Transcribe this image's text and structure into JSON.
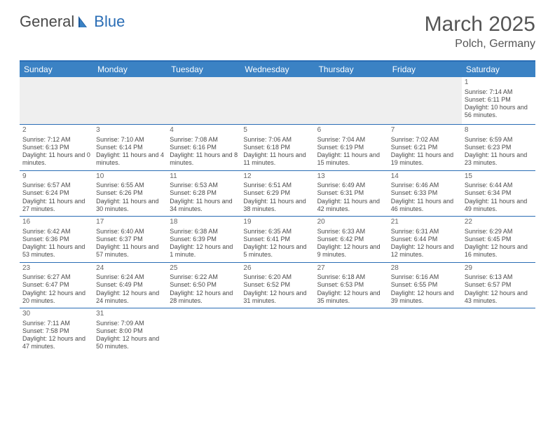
{
  "logo": {
    "text1": "General",
    "text2": "Blue"
  },
  "title": "March 2025",
  "location": "Polch, Germany",
  "header_bg": "#3b82c4",
  "border_color": "#2a6db5",
  "dayNames": [
    "Sunday",
    "Monday",
    "Tuesday",
    "Wednesday",
    "Thursday",
    "Friday",
    "Saturday"
  ],
  "weeks": [
    [
      {
        "blank": true
      },
      {
        "blank": true
      },
      {
        "blank": true
      },
      {
        "blank": true
      },
      {
        "blank": true
      },
      {
        "blank": true
      },
      {
        "d": "1",
        "sr": "Sunrise: 7:14 AM",
        "ss": "Sunset: 6:11 PM",
        "dl": "Daylight: 10 hours and 56 minutes."
      }
    ],
    [
      {
        "d": "2",
        "sr": "Sunrise: 7:12 AM",
        "ss": "Sunset: 6:13 PM",
        "dl": "Daylight: 11 hours and 0 minutes."
      },
      {
        "d": "3",
        "sr": "Sunrise: 7:10 AM",
        "ss": "Sunset: 6:14 PM",
        "dl": "Daylight: 11 hours and 4 minutes."
      },
      {
        "d": "4",
        "sr": "Sunrise: 7:08 AM",
        "ss": "Sunset: 6:16 PM",
        "dl": "Daylight: 11 hours and 8 minutes."
      },
      {
        "d": "5",
        "sr": "Sunrise: 7:06 AM",
        "ss": "Sunset: 6:18 PM",
        "dl": "Daylight: 11 hours and 11 minutes."
      },
      {
        "d": "6",
        "sr": "Sunrise: 7:04 AM",
        "ss": "Sunset: 6:19 PM",
        "dl": "Daylight: 11 hours and 15 minutes."
      },
      {
        "d": "7",
        "sr": "Sunrise: 7:02 AM",
        "ss": "Sunset: 6:21 PM",
        "dl": "Daylight: 11 hours and 19 minutes."
      },
      {
        "d": "8",
        "sr": "Sunrise: 6:59 AM",
        "ss": "Sunset: 6:23 PM",
        "dl": "Daylight: 11 hours and 23 minutes."
      }
    ],
    [
      {
        "d": "9",
        "sr": "Sunrise: 6:57 AM",
        "ss": "Sunset: 6:24 PM",
        "dl": "Daylight: 11 hours and 27 minutes."
      },
      {
        "d": "10",
        "sr": "Sunrise: 6:55 AM",
        "ss": "Sunset: 6:26 PM",
        "dl": "Daylight: 11 hours and 30 minutes."
      },
      {
        "d": "11",
        "sr": "Sunrise: 6:53 AM",
        "ss": "Sunset: 6:28 PM",
        "dl": "Daylight: 11 hours and 34 minutes."
      },
      {
        "d": "12",
        "sr": "Sunrise: 6:51 AM",
        "ss": "Sunset: 6:29 PM",
        "dl": "Daylight: 11 hours and 38 minutes."
      },
      {
        "d": "13",
        "sr": "Sunrise: 6:49 AM",
        "ss": "Sunset: 6:31 PM",
        "dl": "Daylight: 11 hours and 42 minutes."
      },
      {
        "d": "14",
        "sr": "Sunrise: 6:46 AM",
        "ss": "Sunset: 6:33 PM",
        "dl": "Daylight: 11 hours and 46 minutes."
      },
      {
        "d": "15",
        "sr": "Sunrise: 6:44 AM",
        "ss": "Sunset: 6:34 PM",
        "dl": "Daylight: 11 hours and 49 minutes."
      }
    ],
    [
      {
        "d": "16",
        "sr": "Sunrise: 6:42 AM",
        "ss": "Sunset: 6:36 PM",
        "dl": "Daylight: 11 hours and 53 minutes."
      },
      {
        "d": "17",
        "sr": "Sunrise: 6:40 AM",
        "ss": "Sunset: 6:37 PM",
        "dl": "Daylight: 11 hours and 57 minutes."
      },
      {
        "d": "18",
        "sr": "Sunrise: 6:38 AM",
        "ss": "Sunset: 6:39 PM",
        "dl": "Daylight: 12 hours and 1 minute."
      },
      {
        "d": "19",
        "sr": "Sunrise: 6:35 AM",
        "ss": "Sunset: 6:41 PM",
        "dl": "Daylight: 12 hours and 5 minutes."
      },
      {
        "d": "20",
        "sr": "Sunrise: 6:33 AM",
        "ss": "Sunset: 6:42 PM",
        "dl": "Daylight: 12 hours and 9 minutes."
      },
      {
        "d": "21",
        "sr": "Sunrise: 6:31 AM",
        "ss": "Sunset: 6:44 PM",
        "dl": "Daylight: 12 hours and 12 minutes."
      },
      {
        "d": "22",
        "sr": "Sunrise: 6:29 AM",
        "ss": "Sunset: 6:45 PM",
        "dl": "Daylight: 12 hours and 16 minutes."
      }
    ],
    [
      {
        "d": "23",
        "sr": "Sunrise: 6:27 AM",
        "ss": "Sunset: 6:47 PM",
        "dl": "Daylight: 12 hours and 20 minutes."
      },
      {
        "d": "24",
        "sr": "Sunrise: 6:24 AM",
        "ss": "Sunset: 6:49 PM",
        "dl": "Daylight: 12 hours and 24 minutes."
      },
      {
        "d": "25",
        "sr": "Sunrise: 6:22 AM",
        "ss": "Sunset: 6:50 PM",
        "dl": "Daylight: 12 hours and 28 minutes."
      },
      {
        "d": "26",
        "sr": "Sunrise: 6:20 AM",
        "ss": "Sunset: 6:52 PM",
        "dl": "Daylight: 12 hours and 31 minutes."
      },
      {
        "d": "27",
        "sr": "Sunrise: 6:18 AM",
        "ss": "Sunset: 6:53 PM",
        "dl": "Daylight: 12 hours and 35 minutes."
      },
      {
        "d": "28",
        "sr": "Sunrise: 6:16 AM",
        "ss": "Sunset: 6:55 PM",
        "dl": "Daylight: 12 hours and 39 minutes."
      },
      {
        "d": "29",
        "sr": "Sunrise: 6:13 AM",
        "ss": "Sunset: 6:57 PM",
        "dl": "Daylight: 12 hours and 43 minutes."
      }
    ],
    [
      {
        "d": "30",
        "sr": "Sunrise: 7:11 AM",
        "ss": "Sunset: 7:58 PM",
        "dl": "Daylight: 12 hours and 47 minutes."
      },
      {
        "d": "31",
        "sr": "Sunrise: 7:09 AM",
        "ss": "Sunset: 8:00 PM",
        "dl": "Daylight: 12 hours and 50 minutes."
      },
      {
        "blank": true,
        "trailing": true
      },
      {
        "blank": true,
        "trailing": true
      },
      {
        "blank": true,
        "trailing": true
      },
      {
        "blank": true,
        "trailing": true
      },
      {
        "blank": true,
        "trailing": true
      }
    ]
  ]
}
